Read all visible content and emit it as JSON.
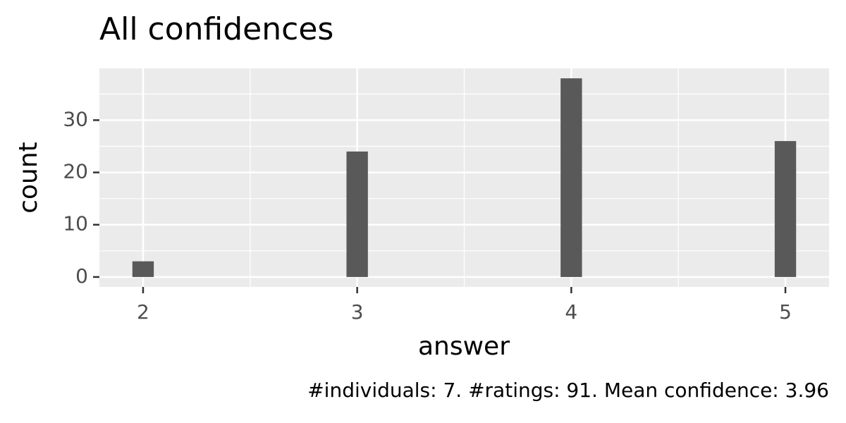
{
  "chart_data": {
    "type": "bar",
    "title": "All confidences",
    "x_label": "answer",
    "y_label": "count",
    "caption": "#individuals: 7. #ratings: 91. Mean confidence: 3.96",
    "x": [
      2,
      3,
      4,
      5
    ],
    "values": [
      3,
      24,
      38,
      26
    ],
    "color": "#595959",
    "bar_width": 0.1,
    "xlim": [
      1.796,
      5.204
    ],
    "xticks": [
      2,
      3,
      4,
      5
    ],
    "x_minor_ticks": [
      2.5,
      3.5,
      4.5
    ],
    "ylim": [
      -1.9,
      39.9
    ],
    "yticks": [
      0,
      10,
      20,
      30
    ],
    "y_minor_ticks": [
      5,
      15,
      25,
      35
    ],
    "grid": true
  }
}
